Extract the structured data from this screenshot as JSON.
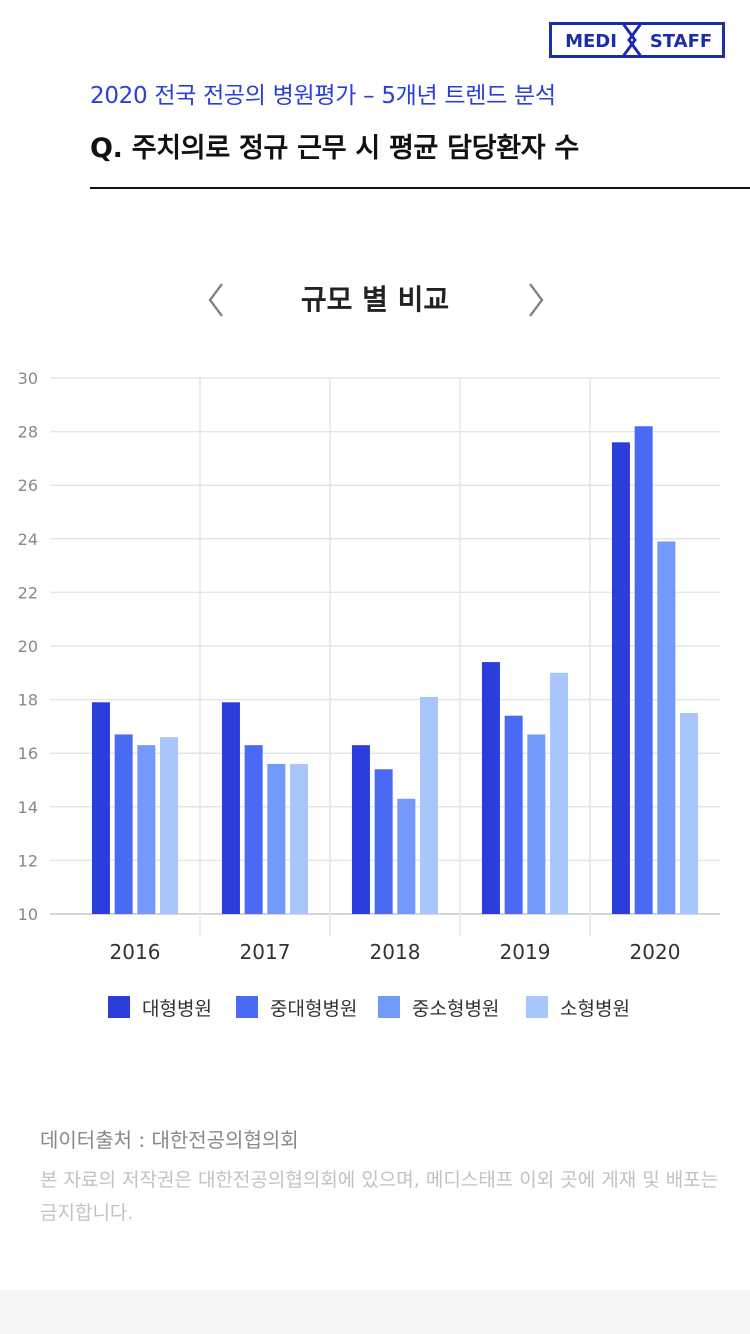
{
  "logo": {
    "left_text": "MEDI",
    "right_text": "STAFF",
    "color": "#1b2ea8"
  },
  "header": {
    "subtitle": "2020 전국 전공의 병원평가 – 5개년 트렌드 분석",
    "question": "Q. 주치의로 정규 근무 시 평균 담당환자 수"
  },
  "nav": {
    "title": "규모 별 비교",
    "prev_icon": "chevron-left-icon",
    "next_icon": "chevron-right-icon"
  },
  "chart_data": {
    "type": "bar",
    "title": "",
    "xlabel": "",
    "ylabel": "",
    "categories": [
      "2016",
      "2017",
      "2018",
      "2019",
      "2020"
    ],
    "ylim": [
      10,
      30
    ],
    "yticks": [
      10,
      12,
      14,
      16,
      18,
      20,
      22,
      24,
      26,
      28,
      30
    ],
    "grid": true,
    "legend_position": "bottom",
    "series": [
      {
        "name": "대형병원",
        "color": "#2b3ddb",
        "values": [
          17.9,
          17.9,
          16.3,
          19.4,
          27.6
        ]
      },
      {
        "name": "중대형병원",
        "color": "#4a6af5",
        "values": [
          16.7,
          16.3,
          15.4,
          17.4,
          28.2
        ]
      },
      {
        "name": "중소형병원",
        "color": "#7399fb",
        "values": [
          16.3,
          15.6,
          14.3,
          16.7,
          23.9
        ]
      },
      {
        "name": "소형병원",
        "color": "#a9c6fc",
        "values": [
          16.6,
          15.6,
          18.1,
          19.0,
          17.5
        ]
      }
    ]
  },
  "footer": {
    "source": "데이터출처 : 대한전공의협의회",
    "copyright": "본 자료의 저작권은 대한전공의협의회에 있으며, 메디스태프 이외 곳에 게재 및 배포는 금지합니다."
  }
}
